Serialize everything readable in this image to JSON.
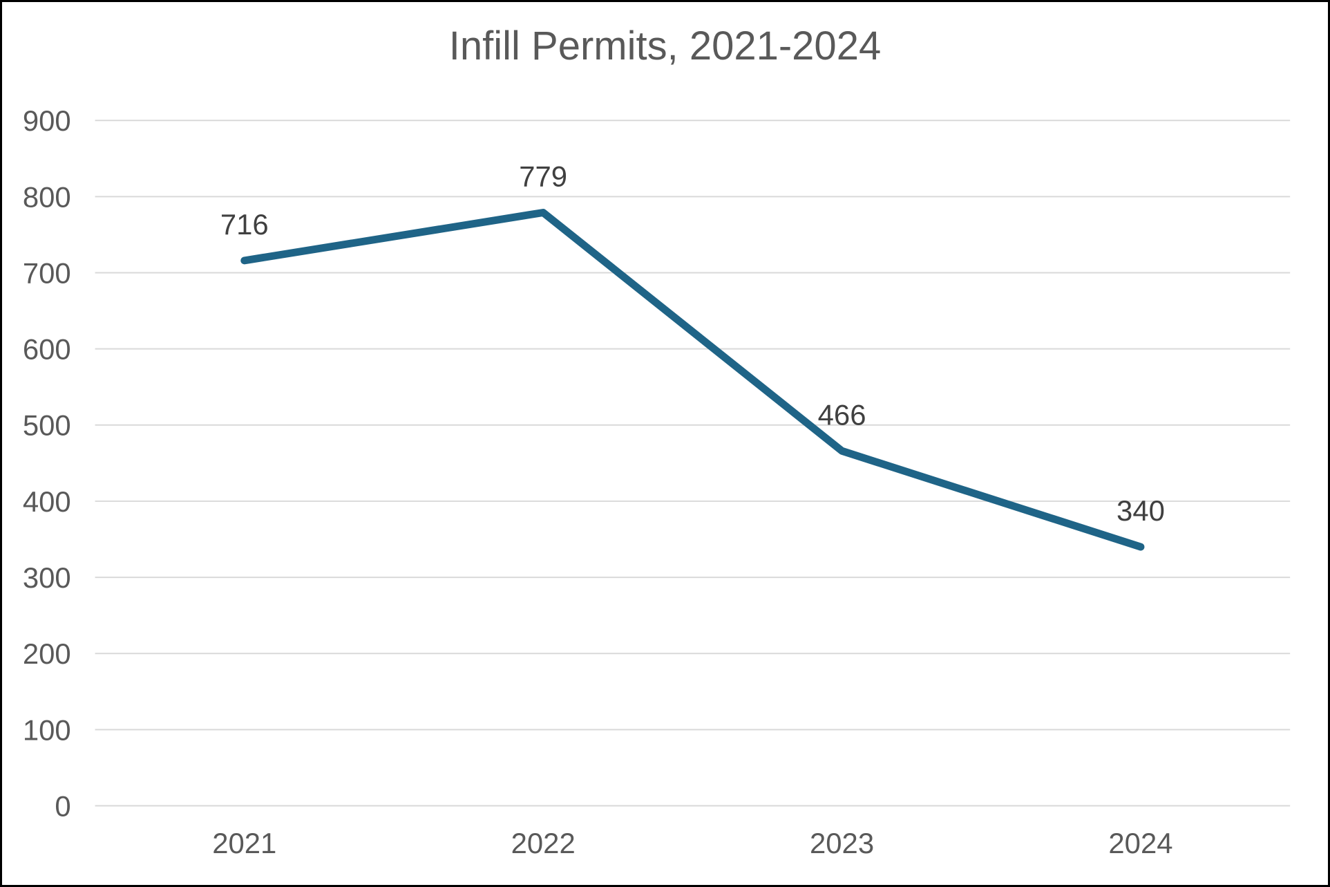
{
  "chart_data": {
    "type": "line",
    "title": "Infill Permits, 2021-2024",
    "categories": [
      "2021",
      "2022",
      "2023",
      "2024"
    ],
    "values": [
      716,
      779,
      466,
      340
    ],
    "data_labels": [
      "716",
      "779",
      "466",
      "340"
    ],
    "xlabel": "",
    "ylabel": "",
    "ylim": [
      0,
      900
    ],
    "ytick_step": 100,
    "yticks": [
      0,
      100,
      200,
      300,
      400,
      500,
      600,
      700,
      800,
      900
    ],
    "grid": "horizontal",
    "legend": "none",
    "markers": "none",
    "colors": {
      "line": "#1F6487",
      "grid": "#D9D9D9",
      "tick_label": "#595959",
      "data_label": "#404040",
      "title": "#595959",
      "background": "#FFFFFF",
      "border": "#000000"
    }
  }
}
